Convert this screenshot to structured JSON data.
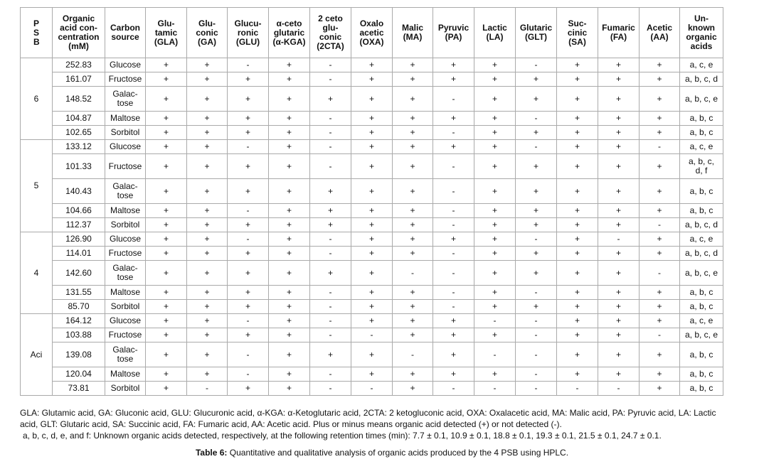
{
  "table": {
    "header": [
      "PSB",
      "Organic\nacid con-\ncentration\n(mM)",
      "Carbon\nsource",
      "Glu-\ntamic\n(GLA)",
      "Glu-\nconic\n(GA)",
      "Glucu-\nronic\n(GLU)",
      "α-ceto\nglutaric\n(α-KGA)",
      "2 ceto\nglu-\nconic\n(2CTA)",
      "Oxalo\nacetic\n(OXA)",
      "Malic\n(MA)",
      "Pyruvic\n(PA)",
      "Lactic\n(LA)",
      "Glutaric\n(GLT)",
      "Suc-\ncinic\n(SA)",
      "Fumaric\n(FA)",
      "Acetic\n(AA)",
      "Un-\nknown\norganic\nacids"
    ],
    "groups": [
      {
        "psb": "6",
        "rows": [
          [
            "252.83",
            "Glucose",
            "+",
            "+",
            "-",
            "+",
            "-",
            "+",
            "+",
            "+",
            "+",
            "-",
            "+",
            "+",
            "+",
            "a, c, e"
          ],
          [
            "161.07",
            "Fructose",
            "+",
            "+",
            "+",
            "+",
            "-",
            "+",
            "+",
            "+",
            "+",
            "+",
            "+",
            "+",
            "+",
            "a, b, c, d"
          ],
          [
            "148.52",
            "Galac-\ntose",
            "+",
            "+",
            "+",
            "+",
            "+",
            "+",
            "+",
            "-",
            "+",
            "+",
            "+",
            "+",
            "+",
            "a, b, c, e"
          ],
          [
            "104.87",
            "Maltose",
            "+",
            "+",
            "+",
            "+",
            "-",
            "+",
            "+",
            "+",
            "+",
            "-",
            "+",
            "+",
            "+",
            "a, b, c"
          ],
          [
            "102.65",
            "Sorbitol",
            "+",
            "+",
            "+",
            "+",
            "-",
            "+",
            "+",
            "-",
            "+",
            "+",
            "+",
            "+",
            "+",
            "a, b, c"
          ]
        ]
      },
      {
        "psb": "5",
        "rows": [
          [
            "133.12",
            "Glucose",
            "+",
            "+",
            "-",
            "+",
            "-",
            "+",
            "+",
            "+",
            "+",
            "-",
            "+",
            "+",
            "-",
            "a, c, e"
          ],
          [
            "101.33",
            "Fructose",
            "+",
            "+",
            "+",
            "+",
            "-",
            "+",
            "+",
            "-",
            "+",
            "+",
            "+",
            "+",
            "+",
            "a, b, c,\nd, f"
          ],
          [
            "140.43",
            "Galac-\ntose",
            "+",
            "+",
            "+",
            "+",
            "+",
            "+",
            "+",
            "-",
            "+",
            "+",
            "+",
            "+",
            "+",
            "a, b, c"
          ],
          [
            "104.66",
            "Maltose",
            "+",
            "+",
            "-",
            "+",
            "+",
            "+",
            "+",
            "-",
            "+",
            "+",
            "+",
            "+",
            "+",
            "a, b, c"
          ],
          [
            "112.37",
            "Sorbitol",
            "+",
            "+",
            "+",
            "+",
            "+",
            "+",
            "+",
            "-",
            "+",
            "+",
            "+",
            "+",
            "-",
            "a, b, c, d"
          ]
        ]
      },
      {
        "psb": "4",
        "rows": [
          [
            "126.90",
            "Glucose",
            "+",
            "+",
            "-",
            "+",
            "-",
            "+",
            "+",
            "+",
            "+",
            "-",
            "+",
            "-",
            "+",
            "a, c, e"
          ],
          [
            "114.01",
            "Fructose",
            "+",
            "+",
            "+",
            "+",
            "-",
            "+",
            "+",
            "-",
            "+",
            "+",
            "+",
            "+",
            "+",
            "a, b, c, d"
          ],
          [
            "142.60",
            "Galac-\ntose",
            "+",
            "+",
            "+",
            "+",
            "+",
            "+",
            "-",
            "-",
            "+",
            "+",
            "+",
            "+",
            "-",
            "a, b, c, e"
          ],
          [
            "131.55",
            "Maltose",
            "+",
            "+",
            "+",
            "+",
            "-",
            "+",
            "+",
            "-",
            "+",
            "-",
            "+",
            "+",
            "+",
            "a, b, c"
          ],
          [
            "85.70",
            "Sorbitol",
            "+",
            "+",
            "+",
            "+",
            "-",
            "+",
            "+",
            "-",
            "+",
            "+",
            "+",
            "+",
            "+",
            "a, b, c"
          ]
        ]
      },
      {
        "psb": "Aci",
        "rows": [
          [
            "164.12",
            "Glucose",
            "+",
            "+",
            "-",
            "+",
            "-",
            "+",
            "+",
            "+",
            "-",
            "-",
            "+",
            "+",
            "+",
            "a, c, e"
          ],
          [
            "103.88",
            "Fructose",
            "+",
            "+",
            "+",
            "+",
            "-",
            "-",
            "+",
            "+",
            "+",
            "-",
            "+",
            "+",
            "-",
            "a, b, c, e"
          ],
          [
            "139.08",
            "Galac-\ntose",
            "+",
            "+",
            "-",
            "+",
            "+",
            "+",
            "-",
            "+",
            "-",
            "-",
            "+",
            "+",
            "+",
            "a, b, c"
          ],
          [
            "120.04",
            "Maltose",
            "+",
            "+",
            "-",
            "+",
            "-",
            "+",
            "+",
            "+",
            "+",
            "-",
            "+",
            "+",
            "+",
            "a, b, c"
          ],
          [
            "73.81",
            "Sorbitol",
            "+",
            "-",
            "+",
            "+",
            "-",
            "-",
            "+",
            "-",
            "-",
            "-",
            "-",
            "-",
            "+",
            "a, b, c"
          ]
        ]
      }
    ]
  },
  "footnotes": [
    "GLA: Glutamic acid, GA: Gluconic acid, GLU: Glucuronic acid, α-KGA: α-Ketoglutaric acid, 2CTA: 2 ketogluconic acid, OXA: Oxalacetic acid, MA: Malic acid, PA: Pyruvic acid, LA: Lactic acid, GLT: Glutaric acid, SA: Succinic acid, FA: Fumaric acid, AA: Acetic acid. Plus or minus means organic acid detected (+) or not detected (-).",
    "a, b, c, d, e, and f: Unknown organic acids detected, respectively, at the following retention times (min): 7.7 ± 0.1, 10.9 ± 0.1, 18.8 ± 0.1, 19.3 ± 0.1, 21.5 ± 0.1, 24.7 ± 0.1."
  ],
  "caption": {
    "label": "Table 6:",
    "text": "Quantitative and qualitative analysis of organic acids produced by the 4 PSB using HPLC."
  }
}
